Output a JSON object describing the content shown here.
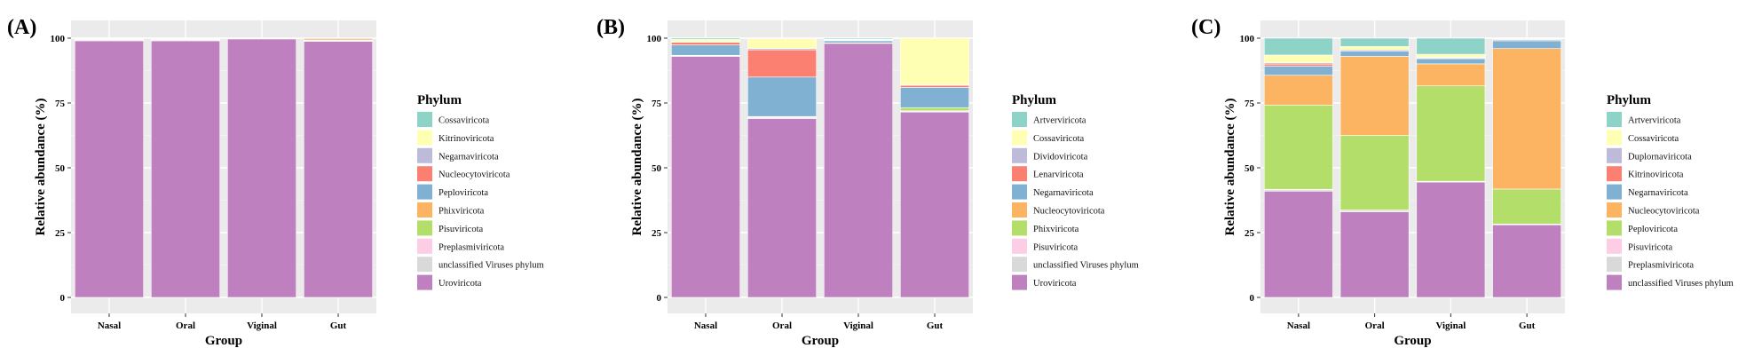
{
  "ylabel": "Relative abundance (%)",
  "xlabel": "Group",
  "yticks": [
    "0",
    "25",
    "50",
    "75",
    "100"
  ],
  "chart_data": [
    {
      "panel": "(A)",
      "type": "bar",
      "stacked": true,
      "xlabel": "Group",
      "ylabel": "Relative abundance (%)",
      "ylim": [
        0,
        100
      ],
      "categories": [
        "Nasal",
        "Oral",
        "Viginal",
        "Gut"
      ],
      "legend_title": "Phylum",
      "legend_position": "right",
      "grid": true,
      "series": [
        {
          "name": "Uroviricota",
          "color": "#BF80BF",
          "values": [
            99.0,
            99.0,
            99.7,
            98.8
          ]
        },
        {
          "name": "unclassified Viruses phylum",
          "color": "#D9D9D9",
          "values": [
            0.3,
            0.3,
            0.1,
            0.2
          ]
        },
        {
          "name": "Preplasmiviricota",
          "color": "#FCCDE5",
          "values": [
            0.0,
            0.1,
            0.0,
            0.1
          ]
        },
        {
          "name": "Pisuviricota",
          "color": "#B3DE69",
          "values": [
            0.1,
            0.2,
            0.0,
            0.2
          ]
        },
        {
          "name": "Phixviricota",
          "color": "#FDB462",
          "values": [
            0.2,
            0.2,
            0.1,
            0.6
          ]
        },
        {
          "name": "Peploviricota",
          "color": "#80B1D3",
          "values": [
            0.1,
            0.1,
            0.0,
            0.1
          ]
        },
        {
          "name": "Nucleocytoviricota",
          "color": "#FB8072",
          "values": [
            0.0,
            0.0,
            0.0,
            0.0
          ]
        },
        {
          "name": "Negarnaviricota",
          "color": "#BEBADA",
          "values": [
            0.1,
            0.1,
            0.0,
            0.0
          ]
        },
        {
          "name": "Kitrinoviricota",
          "color": "#FFFFB3",
          "values": [
            0.1,
            0.0,
            0.0,
            0.0
          ]
        },
        {
          "name": "Cossaviricota",
          "color": "#8DD3C7",
          "values": [
            0.1,
            0.0,
            0.1,
            0.0
          ]
        }
      ]
    },
    {
      "panel": "(B)",
      "type": "bar",
      "stacked": true,
      "xlabel": "Group",
      "ylabel": "Relative abundance (%)",
      "ylim": [
        0,
        100
      ],
      "categories": [
        "Nasal",
        "Oral",
        "Viginal",
        "Gut"
      ],
      "legend_title": "Phylum",
      "legend_position": "right",
      "grid": true,
      "series": [
        {
          "name": "Uroviricota",
          "color": "#BF80BF",
          "values": [
            93.0,
            69.0,
            98.0,
            71.5
          ]
        },
        {
          "name": "unclassified Viruses phylum",
          "color": "#D9D9D9",
          "values": [
            0.2,
            0.4,
            0.2,
            0.3
          ]
        },
        {
          "name": "Pisuviricota",
          "color": "#FCCDE5",
          "values": [
            0.1,
            0.2,
            0.0,
            0.2
          ]
        },
        {
          "name": "Phixviricota",
          "color": "#B3DE69",
          "values": [
            0.1,
            0.2,
            0.0,
            1.2
          ]
        },
        {
          "name": "Nucleocytoviricota",
          "color": "#FDB462",
          "values": [
            0.0,
            0.0,
            0.0,
            0.0
          ]
        },
        {
          "name": "Negarnaviricota",
          "color": "#80B1D3",
          "values": [
            4.0,
            15.2,
            0.8,
            7.8
          ]
        },
        {
          "name": "Lenarviricota",
          "color": "#FB8072",
          "values": [
            1.0,
            10.5,
            0.2,
            0.8
          ]
        },
        {
          "name": "Dividoviricota",
          "color": "#BEBADA",
          "values": [
            0.1,
            0.5,
            0.2,
            0.2
          ]
        },
        {
          "name": "Cossaviricota",
          "color": "#FFFFB3",
          "values": [
            1.0,
            3.8,
            0.2,
            18.0
          ]
        },
        {
          "name": "Artverviricota",
          "color": "#8DD3C7",
          "values": [
            0.5,
            0.2,
            0.4,
            0.0
          ]
        }
      ]
    },
    {
      "panel": "(C)",
      "type": "bar",
      "stacked": true,
      "xlabel": "Group",
      "ylabel": "Relative abundance (%)",
      "ylim": [
        0,
        100
      ],
      "categories": [
        "Nasal",
        "Oral",
        "Viginal",
        "Gut"
      ],
      "legend_title": "Phylum",
      "legend_position": "right",
      "grid": true,
      "series": [
        {
          "name": "unclassified Viruses phylum",
          "color": "#BF80BF",
          "values": [
            41.0,
            33.0,
            44.5,
            28.0
          ]
        },
        {
          "name": "Preplasmiviricota",
          "color": "#D9D9D9",
          "values": [
            0.5,
            0.6,
            0.2,
            0.2
          ]
        },
        {
          "name": "Pisuviricota",
          "color": "#FCCDE5",
          "values": [
            0.2,
            0.1,
            0.1,
            0.1
          ]
        },
        {
          "name": "Peploviricota",
          "color": "#B3DE69",
          "values": [
            32.5,
            28.8,
            36.8,
            13.5
          ]
        },
        {
          "name": "Nucleocytoviricota",
          "color": "#FDB462",
          "values": [
            11.5,
            30.5,
            8.5,
            54.2
          ]
        },
        {
          "name": "Negarnaviricota",
          "color": "#80B1D3",
          "values": [
            3.5,
            2.0,
            2.0,
            3.0
          ]
        },
        {
          "name": "Kitrinoviricota",
          "color": "#FB8072",
          "values": [
            0.8,
            0.0,
            0.2,
            0.0
          ]
        },
        {
          "name": "Duplornaviricota",
          "color": "#BEBADA",
          "values": [
            0.5,
            0.5,
            0.3,
            0.5
          ]
        },
        {
          "name": "Cossaviricota",
          "color": "#FFFFB3",
          "values": [
            3.0,
            1.3,
            1.2,
            0.3
          ]
        },
        {
          "name": "Artverviricota",
          "color": "#8DD3C7",
          "values": [
            6.5,
            3.2,
            6.2,
            0.2
          ]
        }
      ]
    }
  ]
}
